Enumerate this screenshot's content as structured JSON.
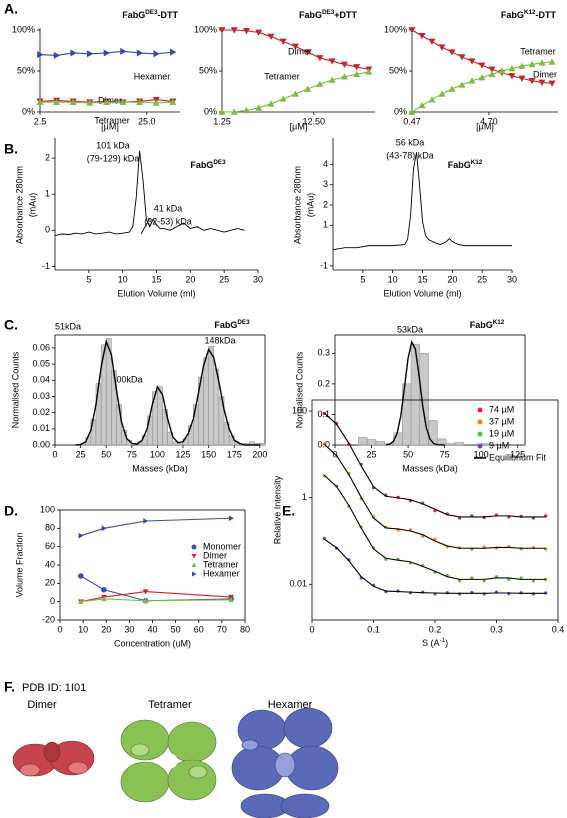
{
  "panel_labels": [
    "A.",
    "B.",
    "C.",
    "D.",
    "E.",
    "F."
  ],
  "structures": {
    "title": "PDB ID: 1I01",
    "names": [
      "Dimer",
      "Tetramer",
      "Hexamer"
    ]
  },
  "chart_data": [
    {
      "type": "line",
      "title": [
        "FabG",
        "DE3",
        "-DTT"
      ],
      "xlabel": "[µM]",
      "x": [
        2.5,
        6,
        9.5,
        13,
        16.5,
        20,
        23.5,
        27,
        30.5
      ],
      "xlim": [
        2.5,
        32
      ],
      "xticks": [
        2.5,
        {
          "value": 25,
          "label": "25.0"
        }
      ],
      "ylim": [
        0,
        100
      ],
      "yticks": [
        {
          "value": 0,
          "label": "0%"
        },
        {
          "value": 50,
          "label": "50%"
        },
        {
          "value": 100,
          "label": "100%"
        }
      ],
      "series": [
        {
          "name": "Hexamer",
          "color": "#3547a8",
          "marker": "triangle-right",
          "values": [
            70,
            69,
            72,
            71,
            72,
            74,
            72,
            71,
            73
          ]
        },
        {
          "name": "Dimer",
          "color": "#c0282d",
          "marker": "triangle-down",
          "values": [
            13,
            14,
            13,
            12,
            13,
            12,
            13,
            15,
            13
          ]
        },
        {
          "name": "Tetramer",
          "color": "#7dbb42",
          "marker": "triangle-up",
          "values": [
            12,
            12,
            12,
            11,
            12,
            12,
            12,
            11,
            12
          ]
        }
      ]
    },
    {
      "type": "line",
      "title": [
        "FabG",
        "DE3",
        "+DTT"
      ],
      "xlabel": "[µM]",
      "x": [
        1.25,
        2.75,
        4.25,
        5.75,
        7.25,
        8.75,
        10.25,
        11.75,
        13.25,
        14.75,
        16.25,
        17.75,
        19.25
      ],
      "xlim": [
        1.25,
        20
      ],
      "xticks": [
        1.25,
        {
          "value": 12.5,
          "label": "12.50"
        }
      ],
      "ylim": [
        0,
        100
      ],
      "yticks": [
        {
          "value": 0,
          "label": "0%"
        },
        {
          "value": 50,
          "label": "50%"
        },
        {
          "value": 100,
          "label": "100%"
        }
      ],
      "series": [
        {
          "name": "Dimer",
          "color": "#c0282d",
          "marker": "triangle-down",
          "values": [
            100,
            100,
            99,
            97,
            92,
            86,
            80,
            73,
            66,
            62,
            58,
            55,
            52
          ]
        },
        {
          "name": "Tetramer",
          "color": "#7dbb42",
          "marker": "triangle-up",
          "values": [
            0,
            0,
            2,
            5,
            10,
            16,
            22,
            28,
            34,
            39,
            43,
            46,
            49
          ]
        }
      ]
    },
    {
      "type": "line",
      "title": [
        "FabG",
        "K12",
        "-DTT"
      ],
      "xlabel": "[µM]",
      "x": [
        0.47,
        1.02,
        1.57,
        2.12,
        2.67,
        3.22,
        3.77,
        4.32,
        4.87,
        5.42,
        5.97,
        6.52,
        7.07,
        7.62,
        8.17
      ],
      "xlim": [
        0.47,
        8.5
      ],
      "xticks": [
        0.47,
        {
          "value": 4.7,
          "label": "4.70"
        }
      ],
      "ylim": [
        0,
        100
      ],
      "yticks": [
        {
          "value": 0,
          "label": "0%"
        },
        {
          "value": 50,
          "label": "50%"
        },
        {
          "value": 100,
          "label": "100%"
        }
      ],
      "series": [
        {
          "name": "Dimer",
          "color": "#c0282d",
          "marker": "triangle-down",
          "values": [
            100,
            93,
            86,
            79,
            73,
            67,
            62,
            57,
            52,
            48,
            44,
            41,
            38,
            36,
            35
          ]
        },
        {
          "name": "Tetramer",
          "color": "#7dbb42",
          "marker": "triangle-up",
          "values": [
            0,
            8,
            15,
            22,
            28,
            33,
            38,
            42,
            46,
            50,
            53,
            56,
            58,
            60,
            61
          ]
        }
      ]
    },
    {
      "type": "line",
      "xlabel": "Elution Volume (ml)",
      "ylabel": "Absorbance 280nm",
      "ylabel2": "(mAu)",
      "annotations": [
        "101 kDa",
        "(79-129) kDa",
        "41 kDa",
        "(32-53) kDa",
        [
          "FabG",
          "DE3"
        ]
      ],
      "x": [
        0,
        1,
        2,
        3,
        4,
        5,
        6,
        7,
        8,
        9,
        10,
        11,
        11.5,
        12,
        12.5,
        13,
        13.5,
        14,
        14.5,
        15,
        15.5,
        16,
        17,
        18,
        19,
        20,
        21,
        22,
        23,
        24,
        25,
        26,
        27,
        28
      ],
      "xlim": [
        0,
        30
      ],
      "xticks": [
        5,
        10,
        15,
        20,
        25,
        30
      ],
      "ylim": [
        -1.1,
        2.5
      ],
      "yticks": [
        -1,
        0,
        1,
        2
      ],
      "series": [
        {
          "color": "#000000",
          "values": [
            -0.15,
            -0.1,
            -0.12,
            -0.08,
            -0.1,
            -0.05,
            -0.1,
            -0.08,
            -0.05,
            -0.1,
            -0.08,
            -0.05,
            0.1,
            0.9,
            2.2,
            1.4,
            0.3,
            0.1,
            0.3,
            0.15,
            0.05,
            0.05,
            0,
            0.1,
            0.2,
            0.05,
            0.1,
            0,
            0.05,
            0,
            -0.05,
            0,
            0.05,
            0
          ]
        }
      ]
    },
    {
      "type": "line",
      "xlabel": "Elution Volume (ml)",
      "ylabel": "Absorbance 280nm",
      "ylabel2": "(mAu)",
      "annotations": [
        "56 kDa",
        "(43-78) kDa",
        [
          "FabG",
          "K12"
        ]
      ],
      "x": [
        0,
        2,
        4,
        6,
        8,
        10,
        12,
        12.5,
        13,
        13.5,
        14,
        14.5,
        15,
        15.5,
        16,
        17,
        18,
        19,
        19.5,
        20,
        21,
        22,
        24,
        26,
        28,
        30
      ],
      "xlim": [
        0,
        30
      ],
      "xticks": [
        5,
        10,
        15,
        20,
        25,
        30
      ],
      "ylim": [
        -1.2,
        5.2
      ],
      "yticks": [
        -1,
        1,
        2,
        3,
        4
      ],
      "series": [
        {
          "color": "#000000",
          "values": [
            -0.2,
            -0.1,
            -0.1,
            0,
            0,
            0,
            0.05,
            0.3,
            1.5,
            3.8,
            4.6,
            3.0,
            1.2,
            0.5,
            0.3,
            0.15,
            0.05,
            0.2,
            0.35,
            0.2,
            0.05,
            0,
            0,
            0,
            0,
            0
          ]
        }
      ]
    },
    {
      "type": "histogram",
      "frame": true,
      "xlabel": "Masses (kDa)",
      "ylabel": "Normalised Counts",
      "annotations": [
        "51kDa",
        "100kDa",
        "148kDa",
        [
          "FabG",
          "DE3"
        ]
      ],
      "color": "#c8c8c8",
      "bins": [
        25,
        30,
        35,
        40,
        45,
        50,
        55,
        60,
        65,
        70,
        75,
        80,
        85,
        90,
        95,
        100,
        105,
        110,
        115,
        120,
        125,
        130,
        135,
        140,
        145,
        150,
        155,
        160,
        165,
        170,
        175,
        180,
        185,
        190,
        195,
        200,
        205
      ],
      "counts": [
        0.001,
        0.005,
        0.016,
        0.038,
        0.062,
        0.066,
        0.046,
        0.025,
        0.009,
        0.003,
        0.001,
        0.002,
        0.006,
        0.018,
        0.033,
        0.036,
        0.022,
        0.008,
        0.002,
        0.001,
        0.004,
        0.012,
        0.025,
        0.042,
        0.054,
        0.061,
        0.047,
        0.03,
        0.014,
        0.006,
        0.002,
        0.001,
        0.001,
        0.002,
        0.001,
        0.001
      ],
      "fit": {
        "color": "#000000",
        "x": [
          20,
          25,
          30,
          35,
          40,
          45,
          50,
          55,
          60,
          65,
          70,
          75,
          80,
          85,
          90,
          95,
          100,
          105,
          110,
          115,
          120,
          125,
          130,
          135,
          140,
          145,
          150,
          155,
          160,
          165,
          170,
          175,
          180,
          185,
          190,
          195,
          200
        ],
        "values": [
          0,
          0.0003,
          0.002,
          0.009,
          0.025,
          0.048,
          0.064,
          0.056,
          0.034,
          0.014,
          0.004,
          0.001,
          0.0004,
          0.003,
          0.01,
          0.025,
          0.036,
          0.031,
          0.016,
          0.005,
          0.0015,
          0.002,
          0.007,
          0.016,
          0.032,
          0.049,
          0.059,
          0.054,
          0.039,
          0.022,
          0.01,
          0.003,
          0.001,
          0,
          0,
          0,
          0
        ]
      },
      "xlim": [
        0,
        205
      ],
      "xticks": [
        0,
        25,
        50,
        75,
        100,
        125,
        150,
        175,
        200
      ],
      "ylim": [
        0,
        0.068
      ],
      "yticks": [
        {
          "value": 0,
          "label": "0.00"
        },
        {
          "value": 0.01,
          "label": "0.01"
        },
        {
          "value": 0.02,
          "label": "0.02"
        },
        {
          "value": 0.03,
          "label": "0.03"
        },
        {
          "value": 0.04,
          "label": "0.04"
        },
        {
          "value": 0.05,
          "label": "0.05"
        },
        {
          "value": 0.06,
          "label": "0.06"
        }
      ]
    },
    {
      "type": "histogram",
      "frame": true,
      "xlabel": "Masses (kDa)",
      "ylabel": "Normalised Counts",
      "annotations": [
        "53kDa",
        [
          "FabG",
          "K12"
        ]
      ],
      "color": "#c8c8c8",
      "bins": [
        16,
        22,
        28,
        34,
        40,
        46,
        52,
        58,
        64,
        70,
        76,
        82,
        88,
        94,
        100,
        106
      ],
      "counts": [
        0.025,
        0.018,
        0.012,
        0.005,
        0.04,
        0.2,
        0.33,
        0.3,
        0.08,
        0.02,
        0.005,
        0.008,
        0,
        0,
        0.005
      ],
      "fit": {
        "color": "#000000",
        "x": [
          35,
          37.5,
          40,
          42.5,
          45,
          47.5,
          50,
          52.5,
          55,
          57.5,
          60,
          62.5,
          65,
          67.5,
          70,
          72.5,
          75
        ],
        "values": [
          0.0005,
          0.003,
          0.012,
          0.038,
          0.095,
          0.186,
          0.284,
          0.337,
          0.314,
          0.227,
          0.128,
          0.056,
          0.019,
          0.005,
          0.001,
          0.0002,
          0
        ]
      },
      "xlim": [
        0,
        130
      ],
      "xticks": [
        0,
        25,
        50,
        75,
        100,
        125
      ],
      "ylim": [
        0,
        0.36
      ],
      "yticks": [
        {
          "value": 0,
          "label": "0.0"
        },
        0.1,
        0.2,
        0.3
      ]
    },
    {
      "type": "line",
      "frame": true,
      "xlabel": "Concentration (uM)",
      "ylabel": "Volume Fraction",
      "legend": "center right",
      "x": [
        9,
        19,
        37,
        74
      ],
      "xlim": [
        0,
        80
      ],
      "xticks": [
        0,
        10,
        20,
        30,
        40,
        50,
        60,
        70,
        80
      ],
      "ylim": [
        -20,
        100
      ],
      "yticks": [
        -20,
        0,
        20,
        40,
        60,
        80,
        100
      ],
      "series": [
        {
          "name": "Monomer",
          "color": "#3d4fb5",
          "marker": "circle",
          "values": [
            28,
            13,
            1,
            3
          ]
        },
        {
          "name": "Dimer",
          "color": "#cc2229",
          "marker": "triangle-down",
          "values": [
            0,
            5,
            11,
            5
          ]
        },
        {
          "name": "Tetramer",
          "color": "#7dbb42",
          "marker": "triangle-up",
          "values": [
            0,
            3,
            1,
            2
          ]
        },
        {
          "name": "Hexamer",
          "color": "#3b4a9c",
          "marker": "triangle-right",
          "values": [
            72,
            80,
            88,
            91
          ]
        }
      ]
    },
    {
      "type": "scatter",
      "frame": true,
      "log_y": true,
      "xlabel": [
        "S (A",
        "-1",
        ")"
      ],
      "ylabel": "Relative Intensity",
      "legend": "upper right",
      "fit_name": "Equilibrium Fit",
      "fit_color": "#000000",
      "x": [
        0.02,
        0.04,
        0.06,
        0.08,
        0.1,
        0.12,
        0.14,
        0.16,
        0.18,
        0.2,
        0.22,
        0.24,
        0.26,
        0.28,
        0.3,
        0.32,
        0.34,
        0.36,
        0.38
      ],
      "xlim": [
        0,
        0.4
      ],
      "xticks": [
        0,
        0.1,
        0.2,
        0.3,
        0.4
      ],
      "ylim": [
        0.0015,
        180
      ],
      "yticks": [
        0.01,
        1,
        100
      ],
      "series": [
        {
          "name": "74 µM",
          "color": "#e0262b",
          "marker": "circle",
          "values": [
            88,
            52,
            17,
            5.9,
            1.7,
            1.15,
            1.02,
            0.85,
            0.75,
            0.5,
            0.42,
            0.34,
            0.38,
            0.35,
            0.4,
            0.36,
            0.37,
            0.34,
            0.38
          ],
          "fit": [
            90,
            49.5,
            18,
            5.4,
            1.8,
            1.08,
            0.99,
            0.9,
            0.72,
            0.54,
            0.405,
            0.36,
            0.36,
            0.36,
            0.38,
            0.38,
            0.36,
            0.36,
            0.36
          ]
        },
        {
          "name": "37 µM",
          "color": "#f07f1f",
          "marker": "circle",
          "values": [
            17.5,
            9,
            3.6,
            0.95,
            0.36,
            0.21,
            0.18,
            0.18,
            0.13,
            0.11,
            0.073,
            0.07,
            0.065,
            0.072,
            0.069,
            0.074,
            0.066,
            0.07,
            0.065
          ],
          "fit": [
            17,
            9.35,
            3.4,
            1.02,
            0.34,
            0.2,
            0.19,
            0.17,
            0.14,
            0.1,
            0.077,
            0.068,
            0.068,
            0.068,
            0.071,
            0.071,
            0.068,
            0.068,
            0.068
          ]
        },
        {
          "name": "19 µM",
          "color": "#5cc02a",
          "marker": "circle",
          "values": [
            3.2,
            1.85,
            0.63,
            0.21,
            0.07,
            0.038,
            0.038,
            0.031,
            0.027,
            0.019,
            0.016,
            0.012,
            0.014,
            0.012,
            0.015,
            0.013,
            0.014,
            0.012,
            0.013
          ],
          "fit": [
            3.3,
            1.8,
            0.66,
            0.2,
            0.066,
            0.04,
            0.036,
            0.033,
            0.026,
            0.02,
            0.015,
            0.013,
            0.013,
            0.013,
            0.014,
            0.014,
            0.013,
            0.013,
            0.013
          ]
        },
        {
          "name": "9 µM",
          "color": "#6a4bc1",
          "marker": "circle",
          "values": [
            0.115,
            0.068,
            0.037,
            0.014,
            0.0095,
            0.0068,
            0.007,
            0.0064,
            0.0066,
            0.006,
            0.0064,
            0.006,
            0.0065,
            0.006,
            0.0066,
            0.0061,
            0.0064,
            0.006,
            0.0063
          ],
          "fit": [
            0.11,
            0.07,
            0.035,
            0.015,
            0.009,
            0.007,
            0.0068,
            0.0066,
            0.0064,
            0.0063,
            0.0062,
            0.0062,
            0.0062,
            0.0062,
            0.0063,
            0.0063,
            0.0062,
            0.0062,
            0.0062
          ]
        }
      ]
    }
  ]
}
